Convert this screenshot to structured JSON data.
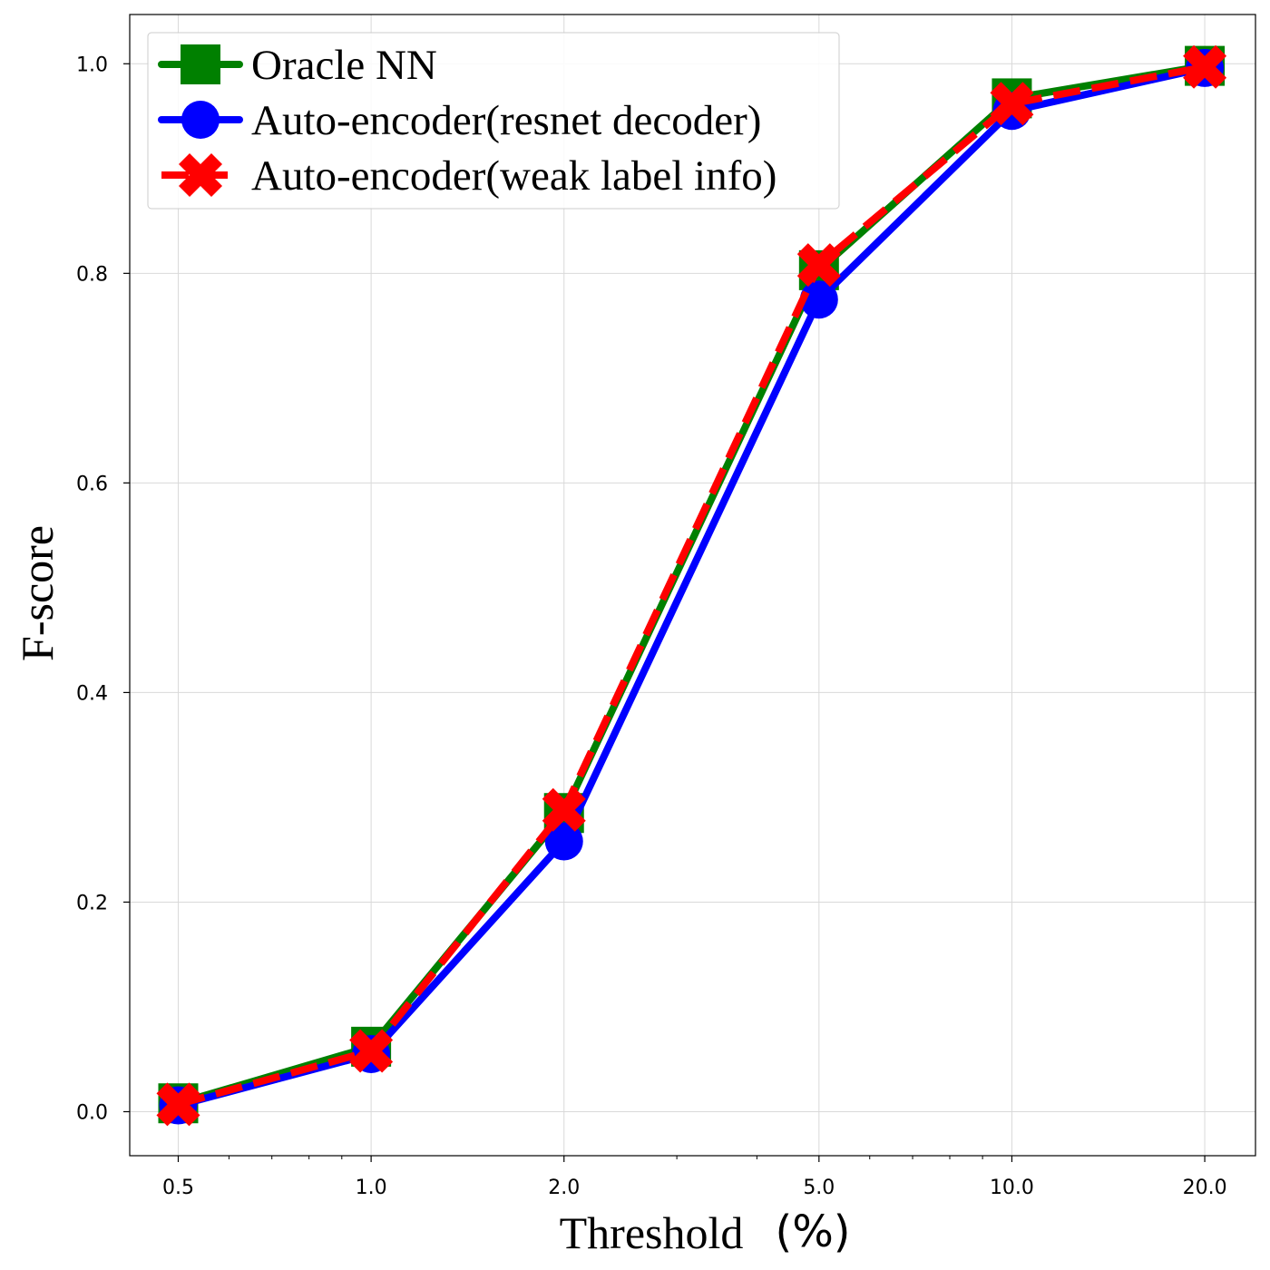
{
  "chart_data": {
    "type": "line",
    "xscale": "log",
    "x": [
      0.5,
      1.0,
      2.0,
      5.0,
      10.0,
      20.0
    ],
    "xticks": [
      "0.5",
      "1.0",
      "2.0",
      "5.0",
      "10.0",
      "20.0"
    ],
    "yticks": [
      "0.0",
      "0.2",
      "0.4",
      "0.6",
      "0.8",
      "1.0"
    ],
    "xlim": [
      0.42,
      24.0
    ],
    "ylim": [
      -0.042,
      1.047
    ],
    "xlabel": "Threshold",
    "xlabel_unit": "(%)",
    "ylabel": "F-score",
    "grid": true,
    "legend_position": "top-left",
    "series": [
      {
        "name": "Oracle NN",
        "color": "#008000",
        "marker": "square",
        "linestyle": "solid",
        "values": [
          0.008,
          0.062,
          0.285,
          0.803,
          0.967,
          0.998
        ]
      },
      {
        "name": "Auto-encoder(resnet decoder)",
        "color": "#0000ff",
        "marker": "circle",
        "linestyle": "solid",
        "values": [
          0.006,
          0.055,
          0.258,
          0.775,
          0.955,
          0.996
        ]
      },
      {
        "name": "Auto-encoder(weak label info)",
        "color": "#ff0000",
        "marker": "x",
        "linestyle": "dashed",
        "values": [
          0.007,
          0.058,
          0.288,
          0.808,
          0.962,
          0.997
        ]
      }
    ]
  }
}
